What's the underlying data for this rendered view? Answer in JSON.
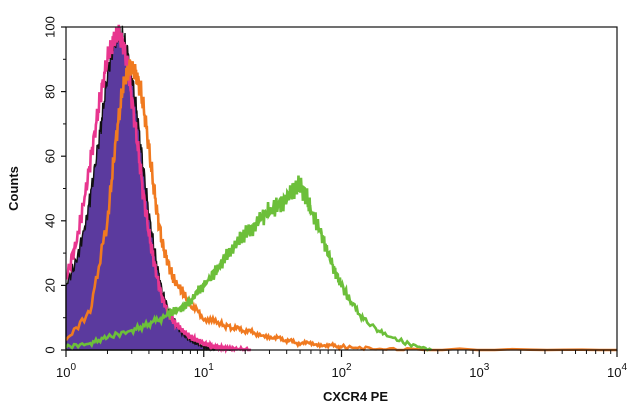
{
  "chart_data": {
    "type": "line",
    "title": "",
    "xlabel": "CXCR4  PE",
    "ylabel": "Counts",
    "x_scale": "log",
    "xlim": [
      1,
      10000
    ],
    "ylim": [
      0,
      100
    ],
    "grid": false,
    "legend": "none",
    "x_ticks": [
      {
        "value": 1,
        "base": "10",
        "exp": "0"
      },
      {
        "value": 10,
        "base": "10",
        "exp": "1"
      },
      {
        "value": 100,
        "base": "10",
        "exp": "2"
      },
      {
        "value": 1000,
        "base": "10",
        "exp": "3"
      },
      {
        "value": 10000,
        "base": "10",
        "exp": "4"
      }
    ],
    "y_ticks": [
      "0",
      "20",
      "40",
      "60",
      "80",
      "100"
    ],
    "series": [
      {
        "color": "#5b3a9e",
        "stroke": "#111111",
        "filled": true,
        "x": [
          1.0,
          1.2,
          1.4,
          1.6,
          1.8,
          2.0,
          2.2,
          2.4,
          2.6,
          2.8,
          3.0,
          3.3,
          3.6,
          4.0,
          4.5,
          5.0,
          5.6,
          6.3,
          7.0,
          8.0,
          9.0,
          10.0,
          11.0,
          12.0,
          14.0,
          16.0
        ],
        "y": [
          20,
          28,
          40,
          55,
          70,
          85,
          94,
          98,
          97,
          92,
          85,
          72,
          58,
          42,
          28,
          18,
          12,
          8,
          5,
          3,
          2,
          1,
          0.5,
          0.3,
          0.1,
          0
        ]
      },
      {
        "color": "#e8368f",
        "x": [
          1.0,
          1.2,
          1.4,
          1.6,
          1.8,
          2.0,
          2.2,
          2.4,
          2.6,
          2.8,
          3.0,
          3.3,
          3.6,
          4.0,
          4.5,
          5.0,
          5.6,
          6.3,
          7.0,
          8.0,
          9.0,
          10.0,
          11.0,
          12.0,
          13.0,
          15.0,
          18.0,
          22.0
        ],
        "y": [
          22,
          34,
          50,
          66,
          80,
          90,
          96,
          98,
          95,
          88,
          78,
          64,
          50,
          36,
          24,
          16,
          11,
          8,
          6,
          4,
          3,
          2,
          1.5,
          1,
          0.8,
          0.5,
          0.3,
          0
        ]
      },
      {
        "color": "#f07a20",
        "x": [
          1.0,
          1.5,
          2.0,
          2.3,
          2.6,
          2.9,
          3.2,
          3.5,
          3.8,
          4.2,
          4.6,
          5.0,
          5.5,
          6.0,
          7.0,
          8.0,
          10.0,
          13.0,
          16.0,
          20.0,
          25.0,
          32.0,
          40.0,
          50.0,
          63.0,
          80.0,
          100.0,
          150.0,
          300.0,
          10000.0
        ],
        "y": [
          3,
          12,
          40,
          65,
          82,
          88,
          86,
          80,
          70,
          55,
          42,
          33,
          27,
          22,
          18,
          14,
          10,
          8,
          7,
          6,
          5,
          4,
          3,
          2,
          2,
          1.5,
          1,
          0.5,
          0,
          0
        ]
      },
      {
        "color": "#6cbf3a",
        "x": [
          1.0,
          1.5,
          2.0,
          3.0,
          4.0,
          5.0,
          6.0,
          7.0,
          8.0,
          9.0,
          10.0,
          12.0,
          14.0,
          16.0,
          18.0,
          20.0,
          23.0,
          26.0,
          30.0,
          35.0,
          40.0,
          45.0,
          50.0,
          55.0,
          60.0,
          70.0,
          80.0,
          90.0,
          100.0,
          120.0,
          150.0,
          200.0,
          300.0,
          450.0
        ],
        "y": [
          1,
          2,
          4,
          6,
          8,
          10,
          12,
          13,
          15,
          18,
          20,
          24,
          28,
          31,
          34,
          36,
          38,
          41,
          43,
          45,
          47,
          50,
          51,
          48,
          43,
          37,
          30,
          24,
          20,
          14,
          9,
          5,
          2,
          0
        ]
      }
    ]
  }
}
